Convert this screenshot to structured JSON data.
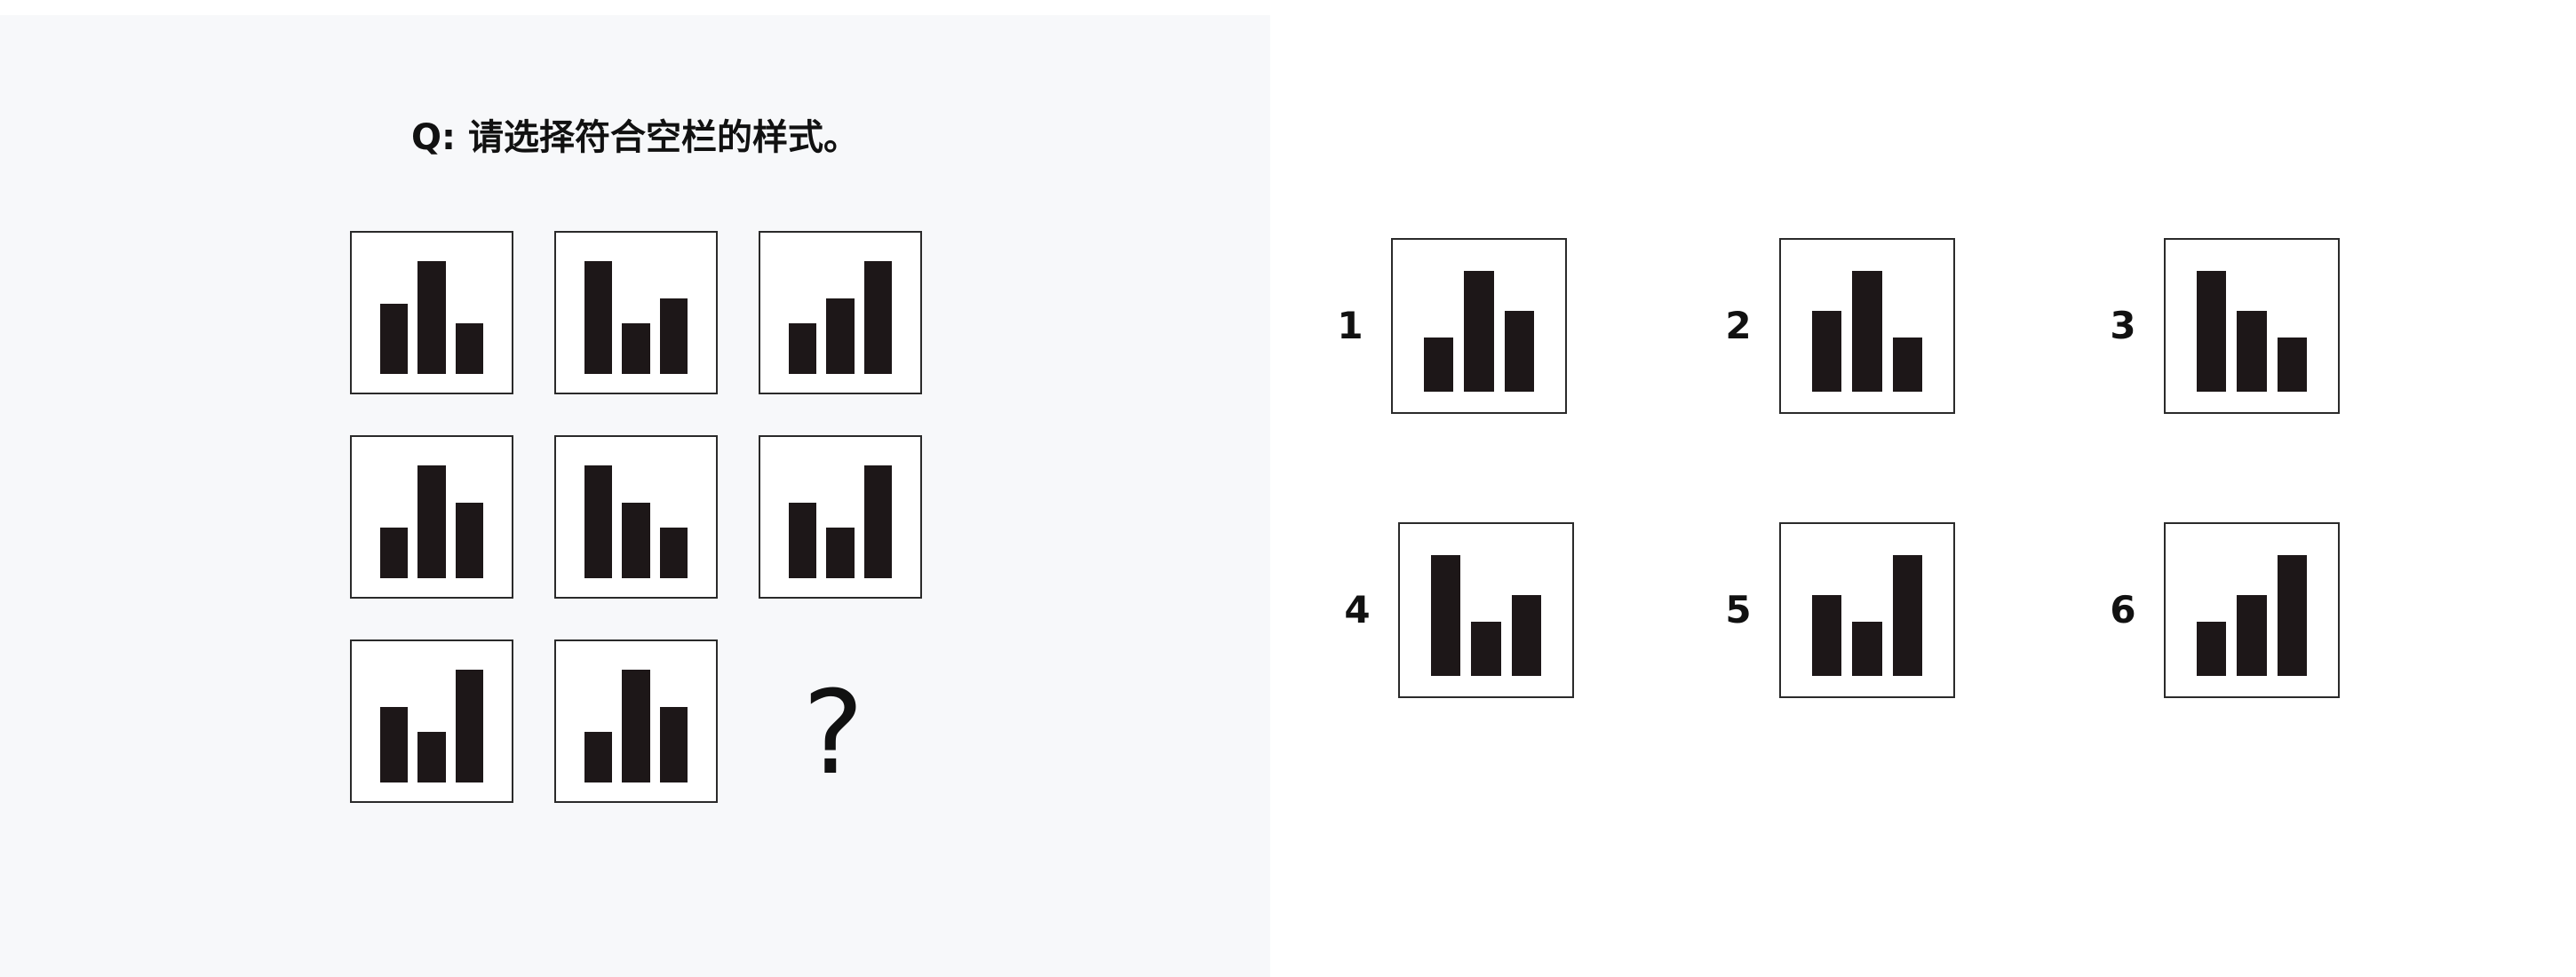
{
  "question": "Q: 请选择符合空栏的样式。",
  "matrix": [
    {
      "bars": [
        0.62,
        1.0,
        0.45
      ]
    },
    {
      "bars": [
        1.0,
        0.45,
        0.67
      ]
    },
    {
      "bars": [
        0.45,
        0.67,
        1.0
      ]
    },
    {
      "bars": [
        0.45,
        1.0,
        0.67
      ]
    },
    {
      "bars": [
        1.0,
        0.67,
        0.45
      ]
    },
    {
      "bars": [
        0.67,
        0.45,
        1.0
      ]
    },
    {
      "bars": [
        0.67,
        0.45,
        1.0
      ]
    },
    {
      "bars": [
        0.45,
        1.0,
        0.67
      ]
    },
    {
      "missing": "?"
    }
  ],
  "options": [
    {
      "label": "1",
      "bars": [
        0.45,
        1.0,
        0.67
      ]
    },
    {
      "label": "2",
      "bars": [
        0.67,
        1.0,
        0.45
      ]
    },
    {
      "label": "3",
      "bars": [
        1.0,
        0.67,
        0.45
      ]
    },
    {
      "label": "4",
      "bars": [
        1.0,
        0.45,
        0.67
      ]
    },
    {
      "label": "5",
      "bars": [
        0.67,
        0.45,
        1.0
      ]
    },
    {
      "label": "6",
      "bars": [
        0.45,
        0.67,
        1.0
      ]
    }
  ]
}
